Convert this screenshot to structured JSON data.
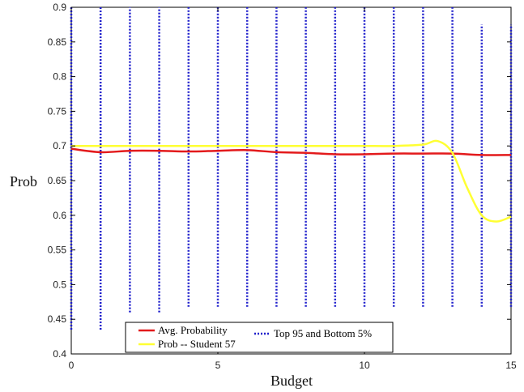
{
  "chart_data": {
    "type": "line",
    "title": "",
    "xlabel": "Budget",
    "ylabel": "Prob",
    "xlim": [
      0,
      15
    ],
    "ylim": [
      0.4,
      0.9
    ],
    "x_ticks": [
      "0",
      "5",
      "10",
      "15"
    ],
    "x_tick_values": [
      0,
      5,
      10,
      15
    ],
    "y_ticks": [
      "0.4",
      "0.45",
      "0.5",
      "0.55",
      "0.6",
      "0.65",
      "0.7",
      "0.75",
      "0.8",
      "0.85",
      "0.9"
    ],
    "y_tick_values": [
      0.4,
      0.45,
      0.5,
      0.55,
      0.6,
      0.65,
      0.7,
      0.75,
      0.8,
      0.85,
      0.9
    ],
    "grid": false,
    "legend_position": "bottom-center",
    "colors": {
      "avg": "#e31a1c",
      "student": "#ffff33",
      "interval": "#1f1fcc",
      "axis": "#000000"
    },
    "series": [
      {
        "name": "Avg. Probability",
        "style": "solid",
        "color": "#e31a1c",
        "x": [
          0,
          1,
          2,
          3,
          4,
          5,
          6,
          7,
          8,
          9,
          10,
          11,
          12,
          13,
          14,
          15
        ],
        "y": [
          0.696,
          0.691,
          0.693,
          0.693,
          0.692,
          0.693,
          0.694,
          0.691,
          0.69,
          0.688,
          0.688,
          0.689,
          0.689,
          0.689,
          0.687,
          0.687
        ]
      },
      {
        "name": "Prob -- Student 57",
        "style": "solid",
        "color": "#ffff33",
        "x": [
          0,
          1,
          2,
          3,
          4,
          5,
          6,
          7,
          8,
          9,
          10,
          11,
          12,
          12.5,
          13,
          13.5,
          14,
          14.5,
          15
        ],
        "y": [
          0.7,
          0.7,
          0.7,
          0.7,
          0.7,
          0.7,
          0.7,
          0.7,
          0.7,
          0.7,
          0.7,
          0.7,
          0.702,
          0.707,
          0.69,
          0.64,
          0.6,
          0.591,
          0.598
        ]
      },
      {
        "name": "Top 95 and Bottom 5%",
        "style": "dotted-interval",
        "color": "#1f1fcc",
        "x": [
          0,
          1,
          2,
          3,
          4,
          5,
          6,
          7,
          8,
          9,
          10,
          11,
          12,
          13,
          14,
          15
        ],
        "lower": [
          0.435,
          0.435,
          0.46,
          0.46,
          0.468,
          0.468,
          0.468,
          0.468,
          0.468,
          0.468,
          0.468,
          0.468,
          0.468,
          0.468,
          0.468,
          0.468
        ],
        "upper": [
          0.9,
          0.9,
          0.9,
          0.9,
          0.9,
          0.9,
          0.9,
          0.9,
          0.9,
          0.9,
          0.9,
          0.9,
          0.9,
          0.9,
          0.875,
          0.875
        ]
      }
    ]
  },
  "legend": {
    "items": [
      {
        "label": "Avg. Probability"
      },
      {
        "label": "Prob -- Student 57"
      },
      {
        "label": "Top 95 and Bottom 5%"
      }
    ]
  }
}
